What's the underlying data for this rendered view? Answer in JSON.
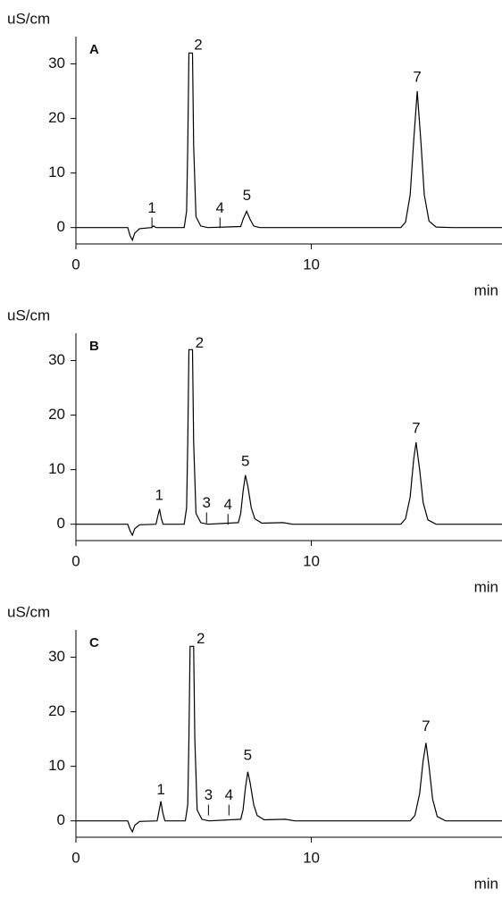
{
  "chart_data": [
    {
      "type": "line",
      "title": "A",
      "ylabel": "uS/cm",
      "xlabel": "min",
      "color": "#000000",
      "xlim": [
        0,
        18.1
      ],
      "xticks": [
        0,
        10
      ],
      "ylim": [
        -3,
        35
      ],
      "yticks": [
        0,
        10,
        20,
        30
      ],
      "x": [
        0,
        2.2,
        2.3,
        2.4,
        2.5,
        2.7,
        3.2,
        3.3,
        3.4,
        4.6,
        4.7,
        4.75,
        4.8,
        4.95,
        5.0,
        5.1,
        5.3,
        5.6,
        7.0,
        7.1,
        7.25,
        7.4,
        7.55,
        7.8,
        13.8,
        14.0,
        14.2,
        14.35,
        14.5,
        14.65,
        14.8,
        15.0,
        15.3,
        16,
        18.1
      ],
      "values": [
        0,
        0,
        -1.5,
        -2.3,
        -1,
        -0.2,
        0,
        0.3,
        0,
        0,
        3,
        15,
        32,
        32,
        15,
        2,
        0.3,
        0,
        0.2,
        1.5,
        3,
        1.5,
        0.3,
        0,
        0,
        1,
        6,
        16,
        25,
        16,
        6,
        1.2,
        0.1,
        0,
        0
      ],
      "annotations": [
        {
          "text": "1",
          "x": 3.23,
          "y": 3.5,
          "marker": true
        },
        {
          "text": "2",
          "x": 5.2,
          "y": 33.4
        },
        {
          "text": "4",
          "x": 6.12,
          "y": 3.5,
          "marker": true
        },
        {
          "text": "5",
          "x": 7.26,
          "y": 5.8
        },
        {
          "text": "7",
          "x": 14.5,
          "y": 27.5
        }
      ]
    },
    {
      "type": "line",
      "title": "B",
      "ylabel": "uS/cm",
      "xlabel": "min",
      "color": "#000000",
      "xlim": [
        0,
        18.1
      ],
      "xticks": [
        0,
        10
      ],
      "ylim": [
        -3,
        35
      ],
      "yticks": [
        0,
        10,
        20,
        30
      ],
      "x": [
        0,
        2.2,
        2.3,
        2.4,
        2.5,
        2.7,
        3.4,
        3.48,
        3.55,
        3.62,
        3.7,
        4.6,
        4.7,
        4.75,
        4.8,
        4.95,
        5.0,
        5.1,
        5.3,
        5.6,
        6.9,
        7.0,
        7.1,
        7.2,
        7.3,
        7.45,
        7.6,
        7.9,
        8.8,
        9.2,
        13.8,
        14.0,
        14.2,
        14.35,
        14.45,
        14.6,
        14.75,
        14.95,
        15.3,
        18.1
      ],
      "values": [
        0,
        0,
        -1.2,
        -2,
        -0.8,
        -0.1,
        0,
        1.5,
        2.8,
        1.2,
        0,
        0,
        3,
        15,
        32,
        32,
        15,
        2,
        0.3,
        0,
        0.3,
        2,
        6,
        9,
        7,
        3,
        1,
        0.2,
        0.3,
        0,
        0,
        1,
        5,
        12,
        15,
        10,
        4,
        0.8,
        0,
        0
      ],
      "annotations": [
        {
          "text": "1",
          "x": 3.54,
          "y": 5.2
        },
        {
          "text": "2",
          "x": 5.25,
          "y": 33.1
        },
        {
          "text": "3",
          "x": 5.55,
          "y": 3.8,
          "marker": true
        },
        {
          "text": "4",
          "x": 6.46,
          "y": 3.5,
          "marker": true
        },
        {
          "text": "5",
          "x": 7.2,
          "y": 11.4
        },
        {
          "text": "7",
          "x": 14.45,
          "y": 17.5
        }
      ]
    },
    {
      "type": "line",
      "title": "C",
      "ylabel": "uS/cm",
      "xlabel": "min",
      "color": "#000000",
      "xlim": [
        0,
        18.1
      ],
      "xticks": [
        0,
        10
      ],
      "ylim": [
        -3,
        35
      ],
      "yticks": [
        0,
        10,
        20,
        30
      ],
      "x": [
        0,
        2.2,
        2.3,
        2.4,
        2.5,
        2.7,
        3.45,
        3.53,
        3.61,
        3.69,
        3.78,
        4.65,
        4.75,
        4.8,
        4.85,
        5.0,
        5.05,
        5.15,
        5.35,
        5.65,
        7.0,
        7.1,
        7.2,
        7.3,
        7.4,
        7.55,
        7.7,
        8.0,
        8.9,
        9.3,
        14.2,
        14.4,
        14.6,
        14.75,
        14.87,
        15.0,
        15.15,
        15.35,
        15.7,
        18.1
      ],
      "values": [
        0,
        0,
        -1.2,
        -2,
        -0.8,
        -0.1,
        0,
        1.8,
        3.6,
        1.5,
        0,
        0,
        3,
        15,
        32,
        32,
        15,
        2,
        0.3,
        0,
        0.3,
        2,
        6,
        9,
        7,
        3,
        1,
        0.2,
        0.3,
        0,
        0,
        1,
        5,
        11,
        14.3,
        10,
        4,
        0.8,
        0,
        0
      ],
      "annotations": [
        {
          "text": "1",
          "x": 3.61,
          "y": 5.6
        },
        {
          "text": "2",
          "x": 5.3,
          "y": 33.3
        },
        {
          "text": "3",
          "x": 5.63,
          "y": 4.6,
          "marker": true
        },
        {
          "text": "4",
          "x": 6.5,
          "y": 4.6,
          "marker": true
        },
        {
          "text": "5",
          "x": 7.3,
          "y": 11.9
        },
        {
          "text": "7",
          "x": 14.87,
          "y": 17.2
        }
      ]
    }
  ]
}
